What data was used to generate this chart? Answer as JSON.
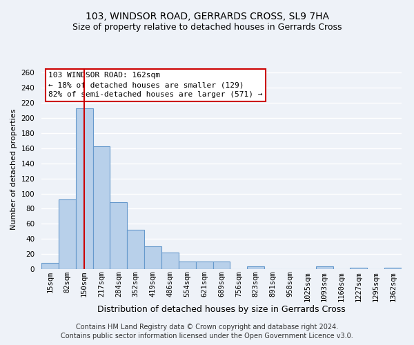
{
  "title": "103, WINDSOR ROAD, GERRARDS CROSS, SL9 7HA",
  "subtitle": "Size of property relative to detached houses in Gerrards Cross",
  "xlabel": "Distribution of detached houses by size in Gerrards Cross",
  "ylabel": "Number of detached properties",
  "bin_labels": [
    "15sqm",
    "82sqm",
    "150sqm",
    "217sqm",
    "284sqm",
    "352sqm",
    "419sqm",
    "486sqm",
    "554sqm",
    "621sqm",
    "689sqm",
    "756sqm",
    "823sqm",
    "891sqm",
    "958sqm",
    "1025sqm",
    "1093sqm",
    "1160sqm",
    "1227sqm",
    "1295sqm",
    "1362sqm"
  ],
  "bar_heights": [
    8,
    92,
    213,
    163,
    89,
    52,
    30,
    22,
    10,
    10,
    10,
    0,
    4,
    0,
    0,
    0,
    4,
    0,
    2,
    0,
    2
  ],
  "bar_color": "#b8d0ea",
  "bar_edge_color": "#6699cc",
  "vline_x": 2,
  "vline_color": "#cc0000",
  "annotation_box_text": "103 WINDSOR ROAD: 162sqm\n← 18% of detached houses are smaller (129)\n82% of semi-detached houses are larger (571) →",
  "box_edge_color": "#cc0000",
  "ylim": [
    0,
    265
  ],
  "yticks": [
    0,
    20,
    40,
    60,
    80,
    100,
    120,
    140,
    160,
    180,
    200,
    220,
    240,
    260
  ],
  "footer_line1": "Contains HM Land Registry data © Crown copyright and database right 2024.",
  "footer_line2": "Contains public sector information licensed under the Open Government Licence v3.0.",
  "bg_color": "#eef2f8",
  "plot_bg_color": "#eef2f8",
  "grid_color": "#ffffff",
  "title_fontsize": 10,
  "subtitle_fontsize": 9,
  "xlabel_fontsize": 9,
  "ylabel_fontsize": 8,
  "footer_fontsize": 7,
  "tick_fontsize": 7.5,
  "ann_fontsize": 8
}
